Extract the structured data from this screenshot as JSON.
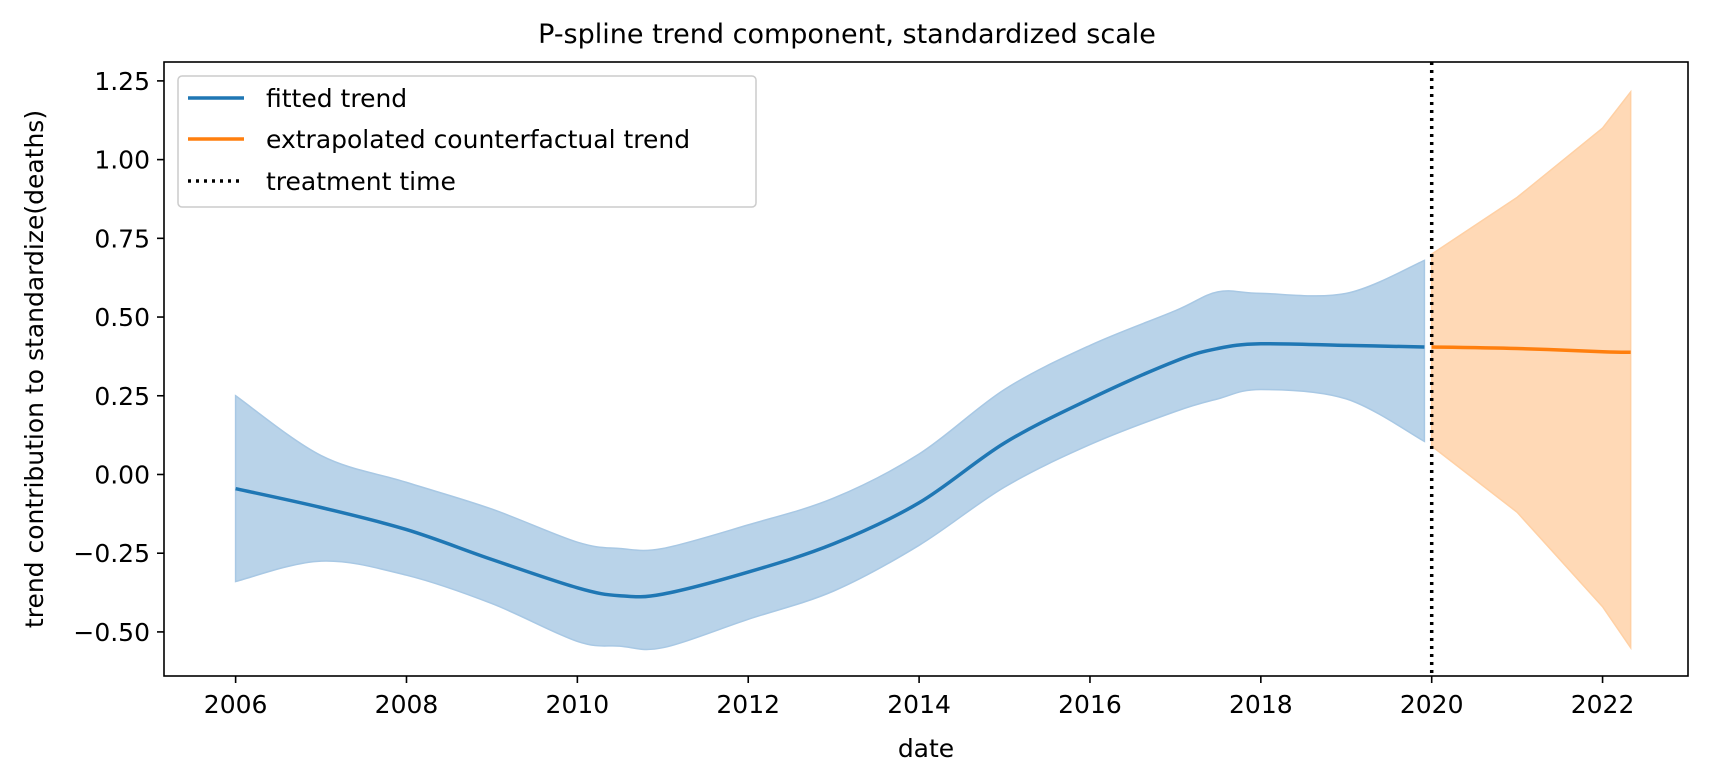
{
  "chart_data": {
    "type": "line",
    "title": "P-spline trend component, standardized scale",
    "xlabel": "date",
    "ylabel": "trend contribution to standardize(deaths)",
    "xlim": [
      "2005-03-01",
      "2023-01-01"
    ],
    "ylim": [
      -0.64,
      1.31
    ],
    "x_ticks": [
      "2006",
      "2008",
      "2010",
      "2012",
      "2014",
      "2016",
      "2018",
      "2020",
      "2022"
    ],
    "y_ticks": [
      "−0.50",
      "−0.25",
      "0.00",
      "0.25",
      "0.50",
      "0.75",
      "1.00",
      "1.25"
    ],
    "grid": false,
    "legend_position": "top-left",
    "legend": [
      "fitted trend",
      "extrapolated counterfactual trend",
      "treatment time"
    ],
    "treatment_time": "2020-01-01",
    "colors": {
      "fitted": "#1f77b4",
      "fitted_band": "#a8c8e4",
      "counterfactual": "#ff7f0e",
      "counterfactual_band": "#ffd0a4",
      "treatment": "#000000"
    },
    "fitted_trend": {
      "x": [
        "2006-01-01",
        "2007-01-01",
        "2008-01-01",
        "2009-01-01",
        "2010-01-01",
        "2010-07-01",
        "2011-01-01",
        "2012-01-01",
        "2013-01-01",
        "2014-01-01",
        "2015-01-01",
        "2016-01-01",
        "2017-01-01",
        "2017-07-01",
        "2018-01-01",
        "2019-01-01",
        "2019-12-01"
      ],
      "y": [
        -0.045,
        -0.105,
        -0.175,
        -0.27,
        -0.36,
        -0.385,
        -0.38,
        -0.31,
        -0.22,
        -0.09,
        0.1,
        0.24,
        0.36,
        0.4,
        0.415,
        0.41,
        0.405
      ],
      "lower": [
        -0.34,
        -0.275,
        -0.32,
        -0.41,
        -0.53,
        -0.545,
        -0.55,
        -0.46,
        -0.37,
        -0.225,
        -0.04,
        0.095,
        0.2,
        0.24,
        0.27,
        0.24,
        0.105
      ],
      "upper": [
        0.25,
        0.06,
        -0.025,
        -0.11,
        -0.215,
        -0.235,
        -0.235,
        -0.16,
        -0.075,
        0.065,
        0.27,
        0.41,
        0.52,
        0.58,
        0.575,
        0.575,
        0.68
      ]
    },
    "counterfactual_trend": {
      "x": [
        "2020-01-01",
        "2021-01-01",
        "2022-01-01",
        "2022-05-01"
      ],
      "y": [
        0.405,
        0.4,
        0.39,
        0.388
      ],
      "lower": [
        0.09,
        -0.12,
        -0.42,
        -0.55
      ],
      "upper": [
        0.7,
        0.88,
        1.1,
        1.215
      ]
    }
  }
}
